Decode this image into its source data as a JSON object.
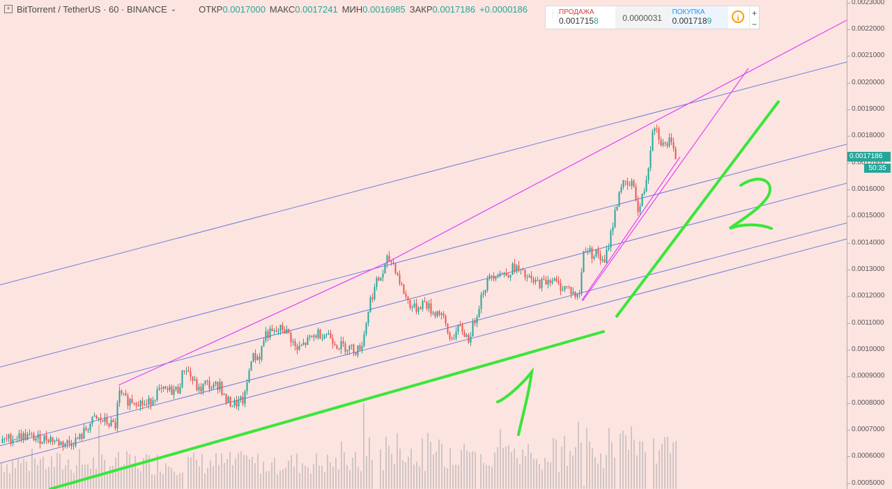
{
  "legend": {
    "symbol": "BitTorrent / TetherUS · 60 · BINANCE",
    "caret": "⌄",
    "open_label": "ОТКР",
    "open_value": "0.0017000",
    "high_label": "МАКС",
    "high_value": "0.0017241",
    "low_label": "МИН",
    "low_value": "0.0016985",
    "close_label": "ЗАКР",
    "close_value": "0.0017186",
    "change_value": "+0.0000186"
  },
  "trade": {
    "sell_label": "ПРОДАЖА",
    "sell_price_main": "0.001715",
    "sell_price_last": "8",
    "spread": "0.0000031",
    "buy_label": "ПОКУПКА",
    "buy_price_main": "0.001718",
    "buy_price_last": "9",
    "info_icon": "i",
    "plus": "+",
    "minus": "−"
  },
  "price_axis": {
    "ticks": [
      "0.0023000",
      "0.0022000",
      "0.0021000",
      "0.0020000",
      "0.0019000",
      "0.0018000",
      "0.0017000",
      "0.0016000",
      "0.0015000",
      "0.0014000",
      "0.0013000",
      "0.0012000",
      "0.0011000",
      "0.0010000",
      "0.0009000",
      "0.0008000",
      "0.0007000",
      "0.0006000",
      "0.0005000"
    ],
    "current_price": "0.0017186",
    "countdown": "50:35"
  },
  "colors": {
    "up": "#26a69a",
    "down": "#ef5350",
    "volume": "#c8c0bf",
    "channel": "#3f5fe0",
    "wedge": "#e040fb",
    "marker": "#39e639"
  },
  "annotations": {
    "label_1": "1",
    "label_2": "2"
  },
  "chart_data": {
    "type": "candlestick",
    "symbol": "BitTorrent / TetherUS",
    "interval": "60",
    "exchange": "BINANCE",
    "ylim": [
      0.0005,
      0.0023
    ],
    "close_path": [
      [
        0,
        0.00065
      ],
      [
        12,
        0.000665
      ],
      [
        25,
        0.000675
      ],
      [
        40,
        0.000675
      ],
      [
        55,
        0.000665
      ],
      [
        70,
        0.00067
      ],
      [
        85,
        0.00065
      ],
      [
        100,
        0.00065
      ],
      [
        115,
        0.00067
      ],
      [
        125,
        0.00071
      ],
      [
        135,
        0.00074
      ],
      [
        145,
        0.000735
      ],
      [
        155,
        0.000725
      ],
      [
        165,
        0.000715
      ],
      [
        170,
        0.000835
      ],
      [
        180,
        0.00081
      ],
      [
        195,
        0.00081
      ],
      [
        210,
        0.00079
      ],
      [
        225,
        0.00084
      ],
      [
        240,
        0.000845
      ],
      [
        255,
        0.00085
      ],
      [
        265,
        0.00094
      ],
      [
        275,
        0.00089
      ],
      [
        285,
        0.000845
      ],
      [
        295,
        0.000875
      ],
      [
        305,
        0.000855
      ],
      [
        315,
        0.000875
      ],
      [
        322,
        0.00081
      ],
      [
        335,
        0.000795
      ],
      [
        350,
        0.00081
      ],
      [
        360,
        0.00097
      ],
      [
        372,
        0.000975
      ],
      [
        380,
        0.00106
      ],
      [
        392,
        0.00106
      ],
      [
        405,
        0.00108
      ],
      [
        415,
        0.001055
      ],
      [
        425,
        0.000995
      ],
      [
        440,
        0.00103
      ],
      [
        455,
        0.00106
      ],
      [
        470,
        0.00106
      ],
      [
        485,
        0.001015
      ],
      [
        500,
        0.00101
      ],
      [
        512,
        0.000995
      ],
      [
        520,
        0.00103
      ],
      [
        530,
        0.00118
      ],
      [
        540,
        0.00125
      ],
      [
        548,
        0.00128
      ],
      [
        556,
        0.00134
      ],
      [
        565,
        0.00132
      ],
      [
        575,
        0.00124
      ],
      [
        585,
        0.00118
      ],
      [
        595,
        0.00115
      ],
      [
        608,
        0.00118
      ],
      [
        620,
        0.00114
      ],
      [
        632,
        0.00114
      ],
      [
        645,
        0.00104
      ],
      [
        660,
        0.00108
      ],
      [
        672,
        0.00104
      ],
      [
        682,
        0.00112
      ],
      [
        692,
        0.00122
      ],
      [
        705,
        0.00128
      ],
      [
        715,
        0.00129
      ],
      [
        725,
        0.00128
      ],
      [
        738,
        0.00131
      ],
      [
        750,
        0.00128
      ],
      [
        765,
        0.00125
      ],
      [
        780,
        0.00125
      ],
      [
        790,
        0.00127
      ],
      [
        800,
        0.00124
      ],
      [
        815,
        0.00123
      ],
      [
        830,
        0.00119
      ],
      [
        838,
        0.00139
      ],
      [
        848,
        0.00136
      ],
      [
        858,
        0.00136
      ],
      [
        866,
        0.00131
      ],
      [
        874,
        0.00141
      ],
      [
        882,
        0.00151
      ],
      [
        890,
        0.00162
      ],
      [
        900,
        0.00161
      ],
      [
        910,
        0.00162
      ],
      [
        915,
        0.00151
      ],
      [
        925,
        0.00161
      ],
      [
        932,
        0.00173
      ],
      [
        937,
        0.00186
      ],
      [
        945,
        0.0018
      ],
      [
        952,
        0.00176
      ],
      [
        960,
        0.00178
      ],
      [
        967,
        0.00173
      ],
      [
        972,
        0.001718
      ]
    ],
    "volume_spikes": [
      [
        265,
        0.00042
      ],
      [
        378,
        0.00058
      ],
      [
        523,
        0.0008
      ],
      [
        540,
        0.00046
      ],
      [
        686,
        0.0004
      ],
      [
        838,
        0.00049
      ],
      [
        885,
        0.00047
      ],
      [
        932,
        0.00041
      ]
    ]
  }
}
